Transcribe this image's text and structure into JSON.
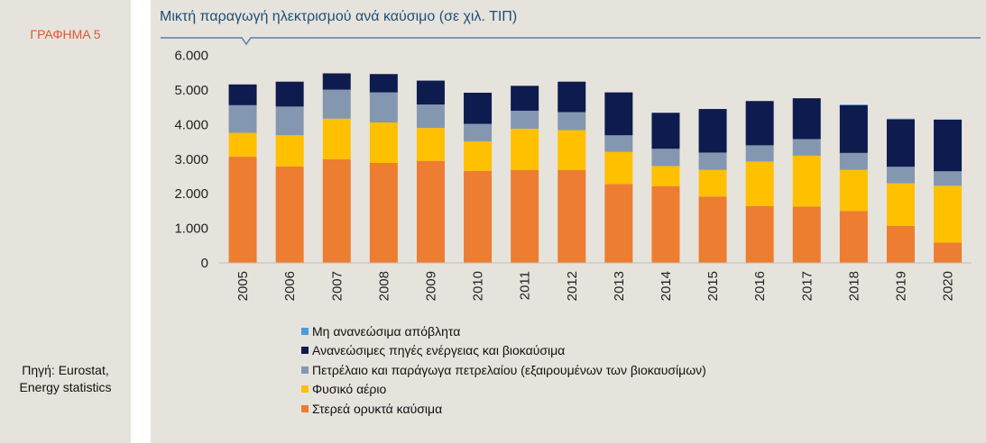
{
  "sidebar": {
    "figure_label": "ΓΡΑΦΗΜΑ 5",
    "source_line1": "Πηγή: Eurostat,",
    "source_line2": "Energy statistics"
  },
  "colors": {
    "panel_bg": "#e6e3dd",
    "header_line": "#5a7fa8",
    "figure_label": "#e8532e",
    "title": "#1f4e79"
  },
  "chart_data": {
    "type": "bar",
    "stacked": true,
    "title": "Μικτή παραγωγή ηλεκτρισμού ανά καύσιμο (σε χιλ. ΤΙΠ)",
    "categories": [
      "2005",
      "2006",
      "2007",
      "2008",
      "2009",
      "2010",
      "2011",
      "2012",
      "2013",
      "2014",
      "2015",
      "2016",
      "2017",
      "2018",
      "2019",
      "2020"
    ],
    "ylim": [
      0,
      6000
    ],
    "yticks": [
      0,
      1000,
      2000,
      3000,
      4000,
      5000,
      6000
    ],
    "ytick_labels": [
      "0",
      "1.000",
      "2.000",
      "3.000",
      "4.000",
      "5.000",
      "6.000"
    ],
    "grid": false,
    "legend_position": "bottom",
    "series": [
      {
        "name": "Στερεά ορυκτά καύσιμα",
        "color": "#ed7d31",
        "values": [
          3070,
          2790,
          3000,
          2890,
          2950,
          2660,
          2690,
          2690,
          2280,
          2220,
          1920,
          1640,
          1630,
          1500,
          1070,
          590
        ]
      },
      {
        "name": "Φυσικό αέριο",
        "color": "#ffc000",
        "values": [
          690,
          900,
          1170,
          1170,
          950,
          850,
          1190,
          1150,
          930,
          580,
          770,
          1290,
          1470,
          1190,
          1230,
          1640
        ]
      },
      {
        "name": "Πετρέλαιο και παράγωγα πετρελαίου (εξαιρουμένων των βιοκαυσίμων)",
        "color": "#8497b0",
        "values": [
          800,
          830,
          840,
          870,
          680,
          510,
          520,
          520,
          480,
          500,
          500,
          470,
          480,
          490,
          480,
          420
        ]
      },
      {
        "name": "Ανανεώσιμες πηγές ενέργειας και βιοκαύσιμα",
        "color": "#0d1b4e",
        "values": [
          600,
          720,
          470,
          530,
          690,
          900,
          720,
          880,
          1240,
          1040,
          1260,
          1280,
          1180,
          1380,
          1370,
          1490
        ]
      },
      {
        "name": "Μη ανανεώσιμα απόβλητα",
        "color": "#4f9bd9",
        "values": [
          0,
          0,
          0,
          0,
          0,
          0,
          0,
          0,
          0,
          0,
          0,
          0,
          0,
          20,
          20,
          10
        ]
      }
    ],
    "legend_order": [
      4,
      3,
      2,
      1,
      0
    ]
  }
}
